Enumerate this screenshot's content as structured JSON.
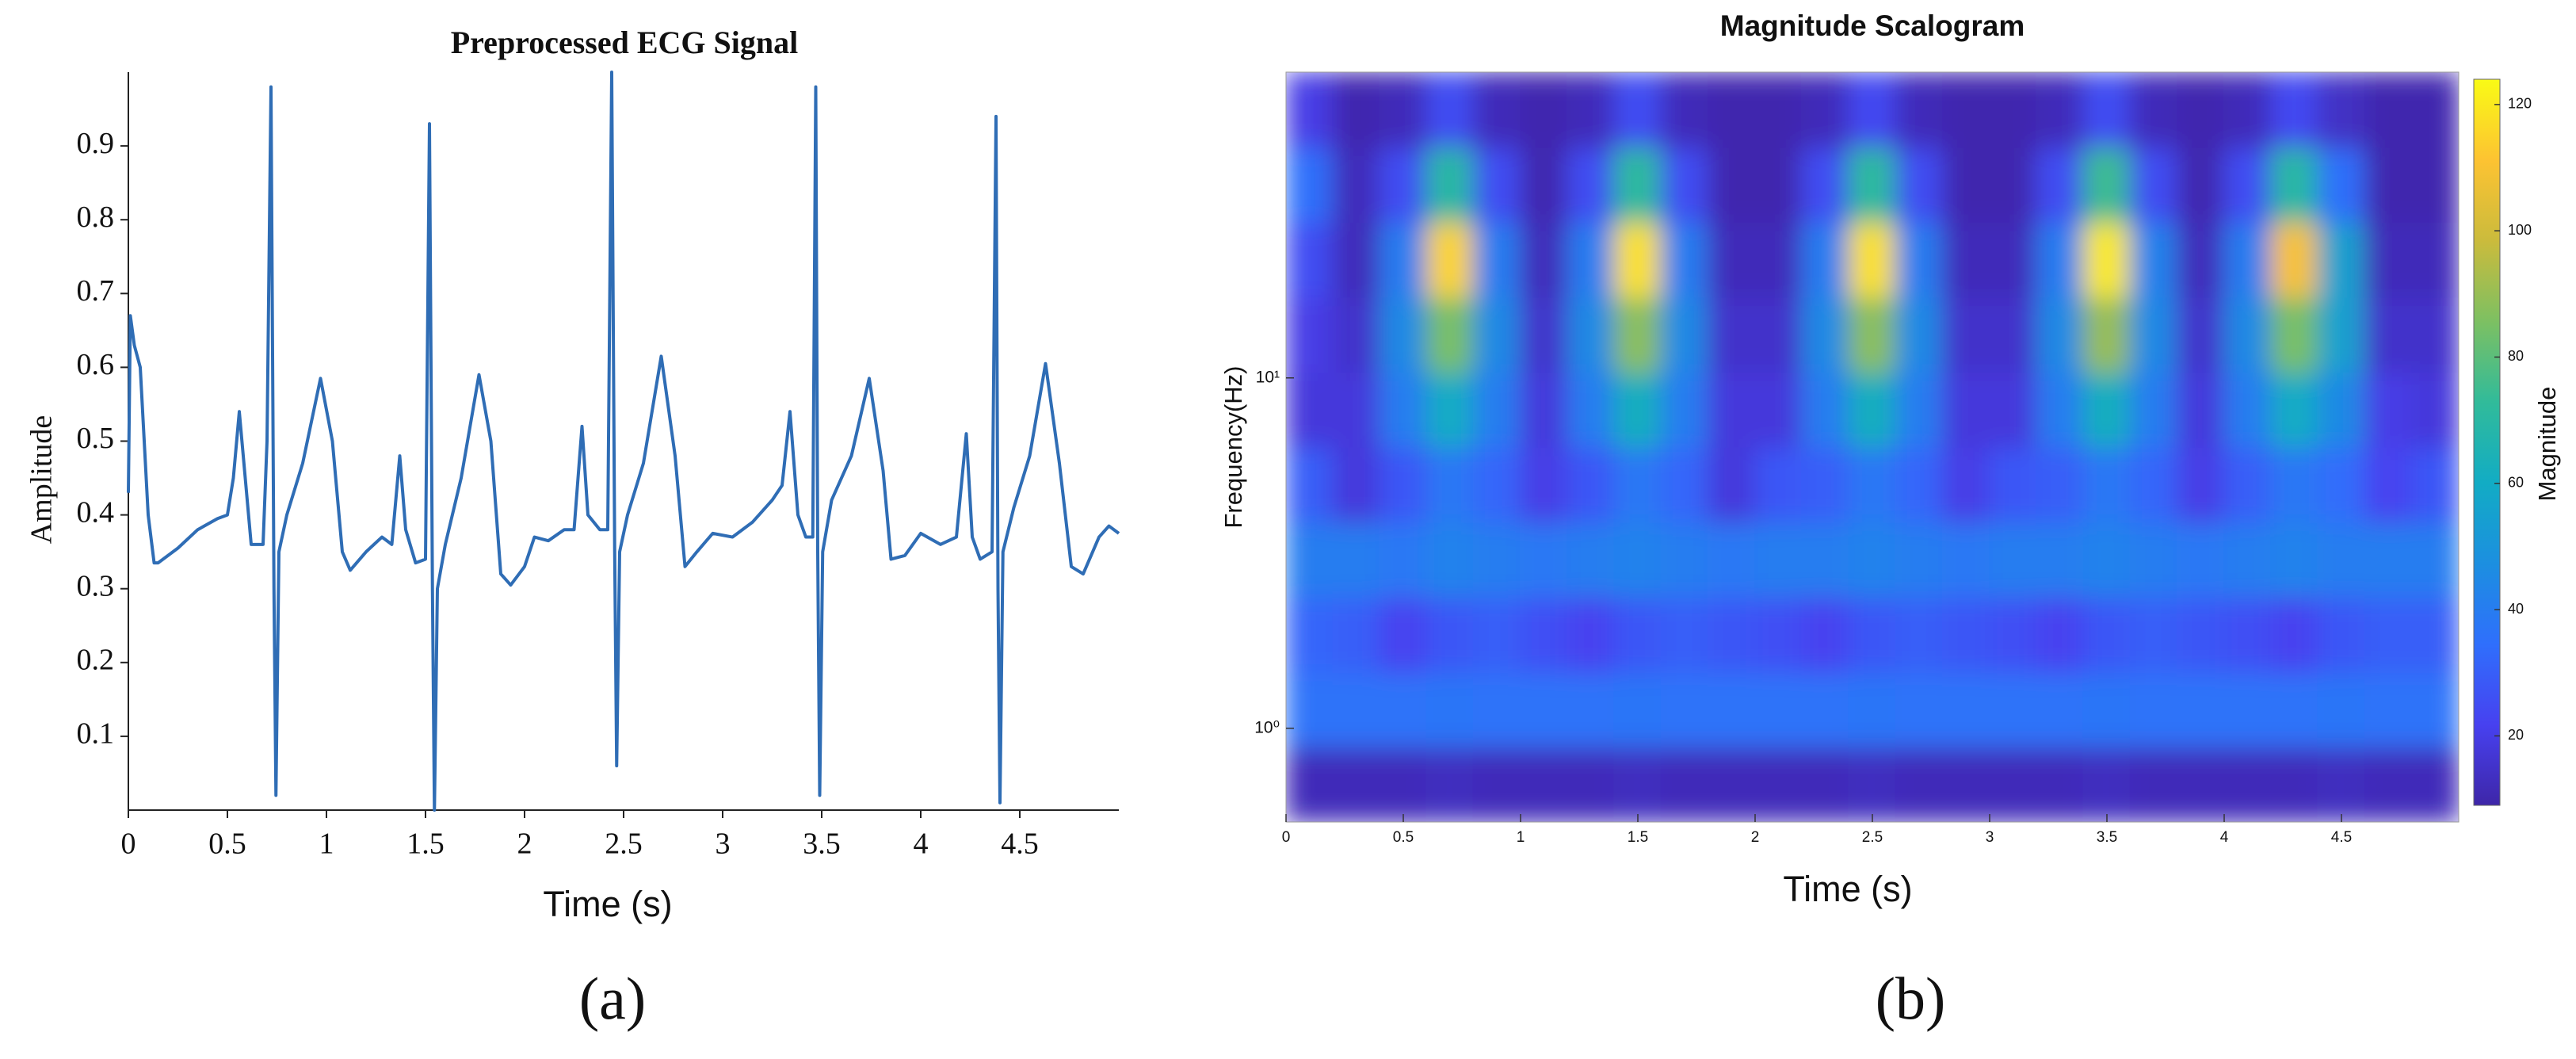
{
  "chart_data": [
    {
      "type": "line",
      "title": "Preprocessed ECG Signal",
      "x_label": "Time (s)",
      "y_label": "Amplitude",
      "caption": "(a)",
      "color": "#2f6db5",
      "x": [
        0,
        0.01,
        0.03,
        0.06,
        0.1,
        0.13,
        0.15,
        0.25,
        0.35,
        0.45,
        0.5,
        0.53,
        0.56,
        0.59,
        0.62,
        0.68,
        0.7,
        0.72,
        0.735,
        0.745,
        0.76,
        0.8,
        0.88,
        0.97,
        1.03,
        1.08,
        1.12,
        1.2,
        1.28,
        1.33,
        1.37,
        1.4,
        1.45,
        1.5,
        1.52,
        1.535,
        1.545,
        1.56,
        1.6,
        1.68,
        1.77,
        1.83,
        1.88,
        1.93,
        2.0,
        2.05,
        2.12,
        2.2,
        2.25,
        2.29,
        2.32,
        2.38,
        2.42,
        2.44,
        2.455,
        2.465,
        2.48,
        2.52,
        2.6,
        2.69,
        2.76,
        2.81,
        2.87,
        2.95,
        3.05,
        3.15,
        3.25,
        3.3,
        3.34,
        3.38,
        3.42,
        3.455,
        3.47,
        3.48,
        3.49,
        3.505,
        3.55,
        3.65,
        3.74,
        3.81,
        3.85,
        3.92,
        4.0,
        4.1,
        4.18,
        4.23,
        4.26,
        4.3,
        4.36,
        4.38,
        4.39,
        4.4,
        4.415,
        4.47,
        4.55,
        4.63,
        4.7,
        4.76,
        4.82,
        4.9,
        4.95,
        5.0
      ],
      "values": [
        0.43,
        0.67,
        0.63,
        0.6,
        0.4,
        0.335,
        0.335,
        0.355,
        0.38,
        0.395,
        0.4,
        0.45,
        0.54,
        0.45,
        0.36,
        0.36,
        0.5,
        0.98,
        0.3,
        0.02,
        0.35,
        0.4,
        0.47,
        0.585,
        0.5,
        0.35,
        0.325,
        0.35,
        0.37,
        0.36,
        0.48,
        0.38,
        0.335,
        0.34,
        0.93,
        0.3,
        0,
        0.3,
        0.36,
        0.45,
        0.59,
        0.5,
        0.32,
        0.305,
        0.33,
        0.37,
        0.365,
        0.38,
        0.38,
        0.52,
        0.4,
        0.38,
        0.38,
        1.0,
        0.35,
        0.06,
        0.35,
        0.4,
        0.47,
        0.615,
        0.48,
        0.33,
        0.35,
        0.375,
        0.37,
        0.39,
        0.42,
        0.44,
        0.54,
        0.4,
        0.37,
        0.37,
        0.98,
        0.35,
        0.02,
        0.35,
        0.42,
        0.48,
        0.585,
        0.46,
        0.34,
        0.345,
        0.375,
        0.36,
        0.37,
        0.51,
        0.37,
        0.34,
        0.35,
        0.94,
        0.3,
        0.01,
        0.35,
        0.41,
        0.48,
        0.605,
        0.47,
        0.33,
        0.32,
        0.37,
        0.385,
        0.375
      ],
      "xlim": [
        0,
        5
      ],
      "xticks": [
        0,
        0.5,
        1,
        1.5,
        2,
        2.5,
        3,
        3.5,
        4,
        4.5
      ],
      "ylim": [
        0,
        1
      ],
      "yticks": [
        0.1,
        0.2,
        0.3,
        0.4,
        0.5,
        0.6,
        0.7,
        0.8,
        0.9
      ]
    },
    {
      "type": "heatmap",
      "title": "Magnitude Scalogram",
      "x_label": "Time (s)",
      "y_label": "Frequency(Hz)",
      "caption": "(b)",
      "x": [
        0.1,
        0.3,
        0.5,
        0.7,
        0.9,
        1.1,
        1.3,
        1.5,
        1.7,
        1.9,
        2.1,
        2.3,
        2.5,
        2.7,
        2.9,
        3.1,
        3.3,
        3.5,
        3.7,
        3.9,
        4.1,
        4.3,
        4.5,
        4.7,
        4.9
      ],
      "y": [
        0.69,
        1.13,
        1.85,
        3.03,
        4.97,
        8.13,
        13.3,
        21.8,
        35.6,
        58.3
      ],
      "values": [
        [
          12,
          12,
          12,
          13,
          12,
          12,
          12,
          13,
          12,
          12,
          12,
          12,
          13,
          12,
          12,
          12,
          12,
          13,
          12,
          12,
          12,
          12,
          13,
          12,
          12
        ],
        [
          36,
          36,
          36,
          37,
          36,
          36,
          36,
          37,
          36,
          36,
          36,
          36,
          37,
          36,
          36,
          36,
          36,
          37,
          36,
          36,
          36,
          36,
          37,
          36,
          36
        ],
        [
          32,
          30,
          22,
          28,
          30,
          26,
          22,
          28,
          30,
          28,
          26,
          22,
          28,
          30,
          28,
          26,
          22,
          28,
          30,
          28,
          26,
          22,
          28,
          30,
          30
        ],
        [
          40,
          40,
          38,
          42,
          40,
          38,
          40,
          42,
          40,
          38,
          40,
          40,
          42,
          40,
          38,
          40,
          40,
          42,
          40,
          38,
          40,
          42,
          40,
          40,
          40
        ],
        [
          30,
          18,
          28,
          38,
          32,
          20,
          28,
          38,
          32,
          18,
          28,
          30,
          38,
          32,
          20,
          28,
          30,
          38,
          32,
          20,
          30,
          38,
          34,
          22,
          28
        ],
        [
          18,
          18,
          40,
          60,
          40,
          18,
          40,
          62,
          40,
          18,
          18,
          40,
          62,
          40,
          18,
          18,
          40,
          62,
          40,
          18,
          40,
          60,
          45,
          20,
          18
        ],
        [
          20,
          15,
          45,
          85,
          45,
          15,
          45,
          88,
          45,
          15,
          15,
          45,
          88,
          45,
          15,
          15,
          45,
          90,
          45,
          15,
          45,
          85,
          55,
          15,
          15
        ],
        [
          25,
          12,
          40,
          115,
          40,
          12,
          40,
          118,
          40,
          12,
          12,
          40,
          118,
          40,
          12,
          12,
          40,
          120,
          42,
          12,
          40,
          110,
          55,
          12,
          12
        ],
        [
          35,
          12,
          25,
          70,
          25,
          10,
          25,
          72,
          25,
          10,
          10,
          25,
          72,
          25,
          10,
          10,
          25,
          75,
          25,
          10,
          25,
          70,
          35,
          10,
          10
        ],
        [
          20,
          10,
          12,
          25,
          12,
          10,
          12,
          25,
          12,
          10,
          10,
          12,
          24,
          12,
          10,
          10,
          12,
          25,
          12,
          10,
          12,
          24,
          14,
          10,
          10
        ]
      ],
      "xlim": [
        0,
        5
      ],
      "xticks": [
        0,
        0.5,
        1,
        1.5,
        2,
        2.5,
        3,
        3.5,
        4,
        4.5
      ],
      "ylim": [
        0.54,
        74.6
      ],
      "log_y": true,
      "yticks": [
        {
          "value": 1,
          "label": "10⁰"
        },
        {
          "value": 10,
          "label": "10¹"
        }
      ],
      "colorbar": {
        "label": "Magnitude",
        "lim": [
          9,
          124
        ],
        "ticks": [
          20,
          40,
          60,
          80,
          100,
          120
        ]
      },
      "colormap": [
        "#3e26a8",
        "#4741f0",
        "#2f6ffc",
        "#1c8fe0",
        "#12acc4",
        "#31bb9a",
        "#7dc062",
        "#cbbb3c",
        "#fdc332",
        "#f9fb15"
      ]
    }
  ]
}
